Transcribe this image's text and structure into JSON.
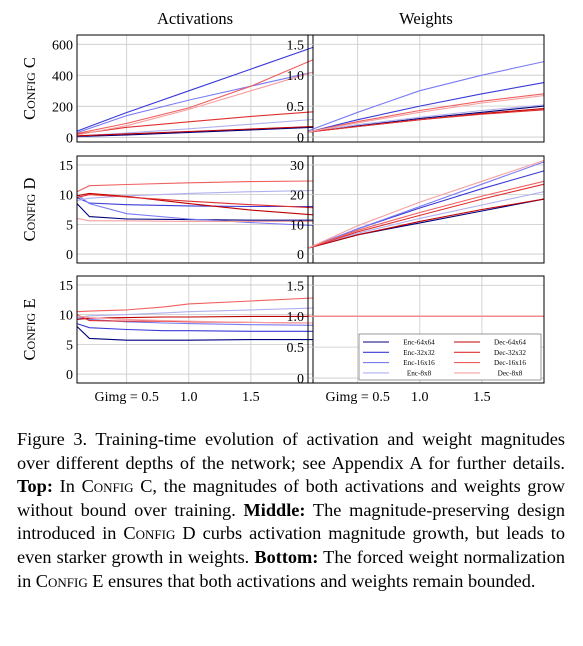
{
  "columns": [
    "Activations",
    "Weights"
  ],
  "rows": [
    "Config C",
    "Config D",
    "Config E"
  ],
  "legend": {
    "entries": [
      "Enc-64x64",
      "Dec-64x64",
      "Enc-32x32",
      "Dec-32x32",
      "Enc-16x16",
      "Dec-16x16",
      "Enc-8x8",
      "Dec-8x8"
    ]
  },
  "colors": {
    "Enc-64x64": "#00007a",
    "Enc-32x32": "#3a3ad8",
    "Enc-16x16": "#7b7bf5",
    "Enc-8x8": "#b0b0ef",
    "Dec-64x64": "#c00000",
    "Dec-32x32": "#e03030",
    "Dec-16x16": "#f06060",
    "Dec-8x8": "#f5a0a0"
  },
  "caption": {
    "figure_label": "Figure 3.",
    "text1": " Training-time evolution of activation and weight magnitudes over different depths of the network; see Appendix A for further details. ",
    "top_label": "Top:",
    "text2": " In ",
    "config_c": "Config C",
    "text3": ", the magnitudes of both activations and weights grow without bound over training. ",
    "middle_label": "Middle:",
    "text4": " The magnitude-preserving design introduced in ",
    "config_d": "Config D",
    "text5": " curbs activation magnitude growth, but leads to even starker growth in weights. ",
    "bottom_label": "Bottom:",
    "text6": " The forced weight normalization in ",
    "config_e": "Config E",
    "text7": " ensures that both activations and weights remain bounded."
  },
  "chart_data": [
    {
      "type": "line",
      "row": "Config C",
      "column": "Activations",
      "xlabel": "",
      "xlim": [
        0.1,
        2.0
      ],
      "ylim": [
        -30,
        660
      ],
      "yticks": [
        0,
        200,
        400,
        600
      ],
      "ytick_labels": [
        "0",
        "200",
        "400",
        "600"
      ],
      "xticks": [
        0.5,
        1.0,
        1.5
      ],
      "xtick_labels": [
        "Gimg = 0.5",
        "1.0",
        "1.5"
      ],
      "grid": true,
      "x": [
        0.1,
        0.5,
        1.0,
        1.5,
        2.0
      ],
      "series": [
        {
          "name": "Enc-64x64",
          "values": [
            5,
            15,
            32,
            48,
            65
          ]
        },
        {
          "name": "Enc-32x32",
          "values": [
            40,
            160,
            300,
            440,
            580
          ]
        },
        {
          "name": "Enc-16x16",
          "values": [
            30,
            140,
            240,
            330,
            420
          ]
        },
        {
          "name": "Enc-8x8",
          "values": [
            8,
            28,
            55,
            85,
            115
          ]
        },
        {
          "name": "Dec-64x64",
          "values": [
            10,
            22,
            38,
            54,
            70
          ]
        },
        {
          "name": "Dec-32x32",
          "values": [
            20,
            65,
            100,
            135,
            165
          ]
        },
        {
          "name": "Dec-16x16",
          "values": [
            25,
            90,
            190,
            330,
            500
          ]
        },
        {
          "name": "Dec-8x8",
          "values": [
            15,
            75,
            180,
            300,
            420
          ]
        }
      ]
    },
    {
      "type": "line",
      "row": "Config C",
      "column": "Weights",
      "xlabel": "",
      "xlim": [
        0.1,
        2.0
      ],
      "ylim": [
        -0.08,
        1.65
      ],
      "yticks": [
        0,
        0.5,
        1.0,
        1.5
      ],
      "ytick_labels": [
        "0",
        "0.5",
        "1.0",
        "1.5"
      ],
      "xticks": [
        0.5,
        1.0,
        1.5
      ],
      "xtick_labels": [
        "Gimg = 0.5",
        "1.0",
        "1.5"
      ],
      "grid": true,
      "x": [
        0.1,
        0.5,
        1.0,
        1.5,
        2.0
      ],
      "series": [
        {
          "name": "Enc-64x64",
          "values": [
            0.08,
            0.18,
            0.3,
            0.4,
            0.5
          ]
        },
        {
          "name": "Enc-32x32",
          "values": [
            0.08,
            0.28,
            0.5,
            0.7,
            0.88
          ]
        },
        {
          "name": "Enc-16x16",
          "values": [
            0.1,
            0.4,
            0.75,
            1.0,
            1.22
          ]
        },
        {
          "name": "Enc-8x8",
          "values": [
            0.08,
            0.2,
            0.32,
            0.43,
            0.52
          ]
        },
        {
          "name": "Dec-64x64",
          "values": [
            0.08,
            0.17,
            0.28,
            0.38,
            0.46
          ]
        },
        {
          "name": "Dec-32x32",
          "values": [
            0.08,
            0.17,
            0.28,
            0.37,
            0.44
          ]
        },
        {
          "name": "Dec-16x16",
          "values": [
            0.08,
            0.25,
            0.43,
            0.58,
            0.7
          ]
        },
        {
          "name": "Dec-8x8",
          "values": [
            0.08,
            0.23,
            0.4,
            0.55,
            0.67
          ]
        }
      ]
    },
    {
      "type": "line",
      "row": "Config D",
      "column": "Activations",
      "xlabel": "",
      "xlim": [
        0.1,
        2.0
      ],
      "ylim": [
        -1.5,
        16.5
      ],
      "yticks": [
        0,
        5,
        10,
        15
      ],
      "ytick_labels": [
        "0",
        "5",
        "10",
        "15"
      ],
      "xticks": [
        0.5,
        1.0,
        1.5
      ],
      "xtick_labels": [
        "Gimg = 0.5",
        "1.0",
        "1.5"
      ],
      "grid": true,
      "x": [
        0.1,
        0.2,
        0.5,
        1.0,
        1.5,
        2.0
      ],
      "series": [
        {
          "name": "Enc-64x64",
          "values": [
            8.5,
            6.3,
            5.9,
            5.8,
            5.7,
            5.7
          ]
        },
        {
          "name": "Enc-32x32",
          "values": [
            9.5,
            8.6,
            8.3,
            8.1,
            8.0,
            8.0
          ]
        },
        {
          "name": "Enc-16x16",
          "values": [
            10.0,
            8.5,
            6.8,
            5.9,
            5.3,
            4.8
          ]
        },
        {
          "name": "Enc-8x8",
          "values": [
            9.0,
            9.4,
            9.8,
            10.2,
            10.5,
            10.7
          ]
        },
        {
          "name": "Dec-64x64",
          "values": [
            9.8,
            10.2,
            9.7,
            8.5,
            7.4,
            6.6
          ]
        },
        {
          "name": "Dec-32x32",
          "values": [
            9.5,
            10.0,
            9.6,
            8.9,
            8.3,
            7.8
          ]
        },
        {
          "name": "Dec-16x16",
          "values": [
            10.5,
            11.5,
            11.7,
            12.0,
            12.2,
            12.3
          ]
        },
        {
          "name": "Dec-8x8",
          "values": [
            6.0,
            5.6,
            5.6,
            5.5,
            5.5,
            5.5
          ]
        }
      ]
    },
    {
      "type": "line",
      "row": "Config D",
      "column": "Weights",
      "xlabel": "",
      "xlim": [
        0.1,
        2.0
      ],
      "ylim": [
        -3,
        33
      ],
      "yticks": [
        0,
        10,
        20,
        30
      ],
      "ytick_labels": [
        "0",
        "10",
        "20",
        "30"
      ],
      "xticks": [
        0.5,
        1.0,
        1.5
      ],
      "xtick_labels": [
        "Gimg = 0.5",
        "1.0",
        "1.5"
      ],
      "grid": true,
      "x": [
        0.1,
        0.5,
        1.0,
        1.5,
        2.0
      ],
      "series": [
        {
          "name": "Enc-64x64",
          "values": [
            2,
            6.5,
            10.5,
            14.5,
            18.5
          ]
        },
        {
          "name": "Enc-32x32",
          "values": [
            2,
            8.5,
            15.5,
            22,
            28
          ]
        },
        {
          "name": "Enc-16x16",
          "values": [
            2,
            8.5,
            16,
            23.5,
            31
          ]
        },
        {
          "name": "Enc-8x8",
          "values": [
            2,
            7,
            12,
            16.5,
            21
          ]
        },
        {
          "name": "Dec-64x64",
          "values": [
            2,
            6.5,
            11,
            15,
            18.5
          ]
        },
        {
          "name": "Dec-32x32",
          "values": [
            2,
            7.5,
            13,
            18.5,
            23.5
          ]
        },
        {
          "name": "Dec-16x16",
          "values": [
            2,
            8,
            14,
            19.5,
            24.5
          ]
        },
        {
          "name": "Dec-8x8",
          "values": [
            2,
            9.5,
            17.5,
            24.5,
            31.5
          ]
        }
      ]
    },
    {
      "type": "line",
      "row": "Config E",
      "column": "Activations",
      "xlabel": "",
      "xlim": [
        0.1,
        2.0
      ],
      "ylim": [
        -1.5,
        16.5
      ],
      "yticks": [
        0,
        5,
        10,
        15
      ],
      "ytick_labels": [
        "0",
        "5",
        "10",
        "15"
      ],
      "xticks": [
        0.5,
        1.0,
        1.5
      ],
      "xtick_labels": [
        "Gimg = 0.5",
        "1.0",
        "1.5"
      ],
      "grid": true,
      "x": [
        0.1,
        0.2,
        0.5,
        0.8,
        1.0,
        1.5,
        2.0
      ],
      "series": [
        {
          "name": "Enc-64x64",
          "values": [
            8.0,
            6.0,
            5.7,
            5.7,
            5.7,
            5.8,
            5.8
          ]
        },
        {
          "name": "Enc-32x32",
          "values": [
            8.5,
            7.8,
            7.5,
            7.3,
            7.3,
            7.2,
            7.2
          ]
        },
        {
          "name": "Enc-16x16",
          "values": [
            9.5,
            9.2,
            8.8,
            8.6,
            8.5,
            8.3,
            8.2
          ]
        },
        {
          "name": "Enc-8x8",
          "values": [
            9.5,
            9.8,
            10.0,
            10.3,
            10.5,
            10.8,
            11.1
          ]
        },
        {
          "name": "Dec-64x64",
          "values": [
            9.2,
            9.4,
            9.5,
            9.6,
            9.6,
            9.7,
            9.7
          ]
        },
        {
          "name": "Dec-32x32",
          "values": [
            10.0,
            9.0,
            8.9,
            8.9,
            8.8,
            8.7,
            8.6
          ]
        },
        {
          "name": "Dec-16x16",
          "values": [
            10.5,
            10.6,
            10.8,
            11.3,
            11.8,
            12.3,
            12.8
          ]
        },
        {
          "name": "Dec-8x8",
          "values": [
            9.8,
            9.5,
            9.2,
            9.0,
            8.9,
            8.7,
            8.6
          ]
        }
      ]
    },
    {
      "type": "line",
      "row": "Config E",
      "column": "Weights",
      "xlabel": "",
      "xlim": [
        0.1,
        2.0
      ],
      "ylim": [
        -0.08,
        1.65
      ],
      "yticks": [
        0,
        0.5,
        1.0,
        1.5
      ],
      "ytick_labels": [
        "0",
        "0.5",
        "1.0",
        "1.5"
      ],
      "xticks": [
        0.5,
        1.0,
        1.5
      ],
      "xtick_labels": [
        "Gimg = 0.5",
        "1.0",
        "1.5"
      ],
      "grid": true,
      "legend_position": "bottom-right",
      "x": [
        0.1,
        2.0
      ],
      "series": [
        {
          "name": "Enc-64x64",
          "values": [
            1.0,
            1.0
          ]
        },
        {
          "name": "Enc-32x32",
          "values": [
            1.0,
            1.0
          ]
        },
        {
          "name": "Enc-16x16",
          "values": [
            1.0,
            1.0
          ]
        },
        {
          "name": "Enc-8x8",
          "values": [
            1.0,
            1.0
          ]
        },
        {
          "name": "Dec-64x64",
          "values": [
            1.0,
            1.0
          ]
        },
        {
          "name": "Dec-32x32",
          "values": [
            1.0,
            1.0
          ]
        },
        {
          "name": "Dec-16x16",
          "values": [
            1.0,
            1.0
          ]
        },
        {
          "name": "Dec-8x8",
          "values": [
            1.0,
            1.0
          ]
        }
      ]
    }
  ]
}
